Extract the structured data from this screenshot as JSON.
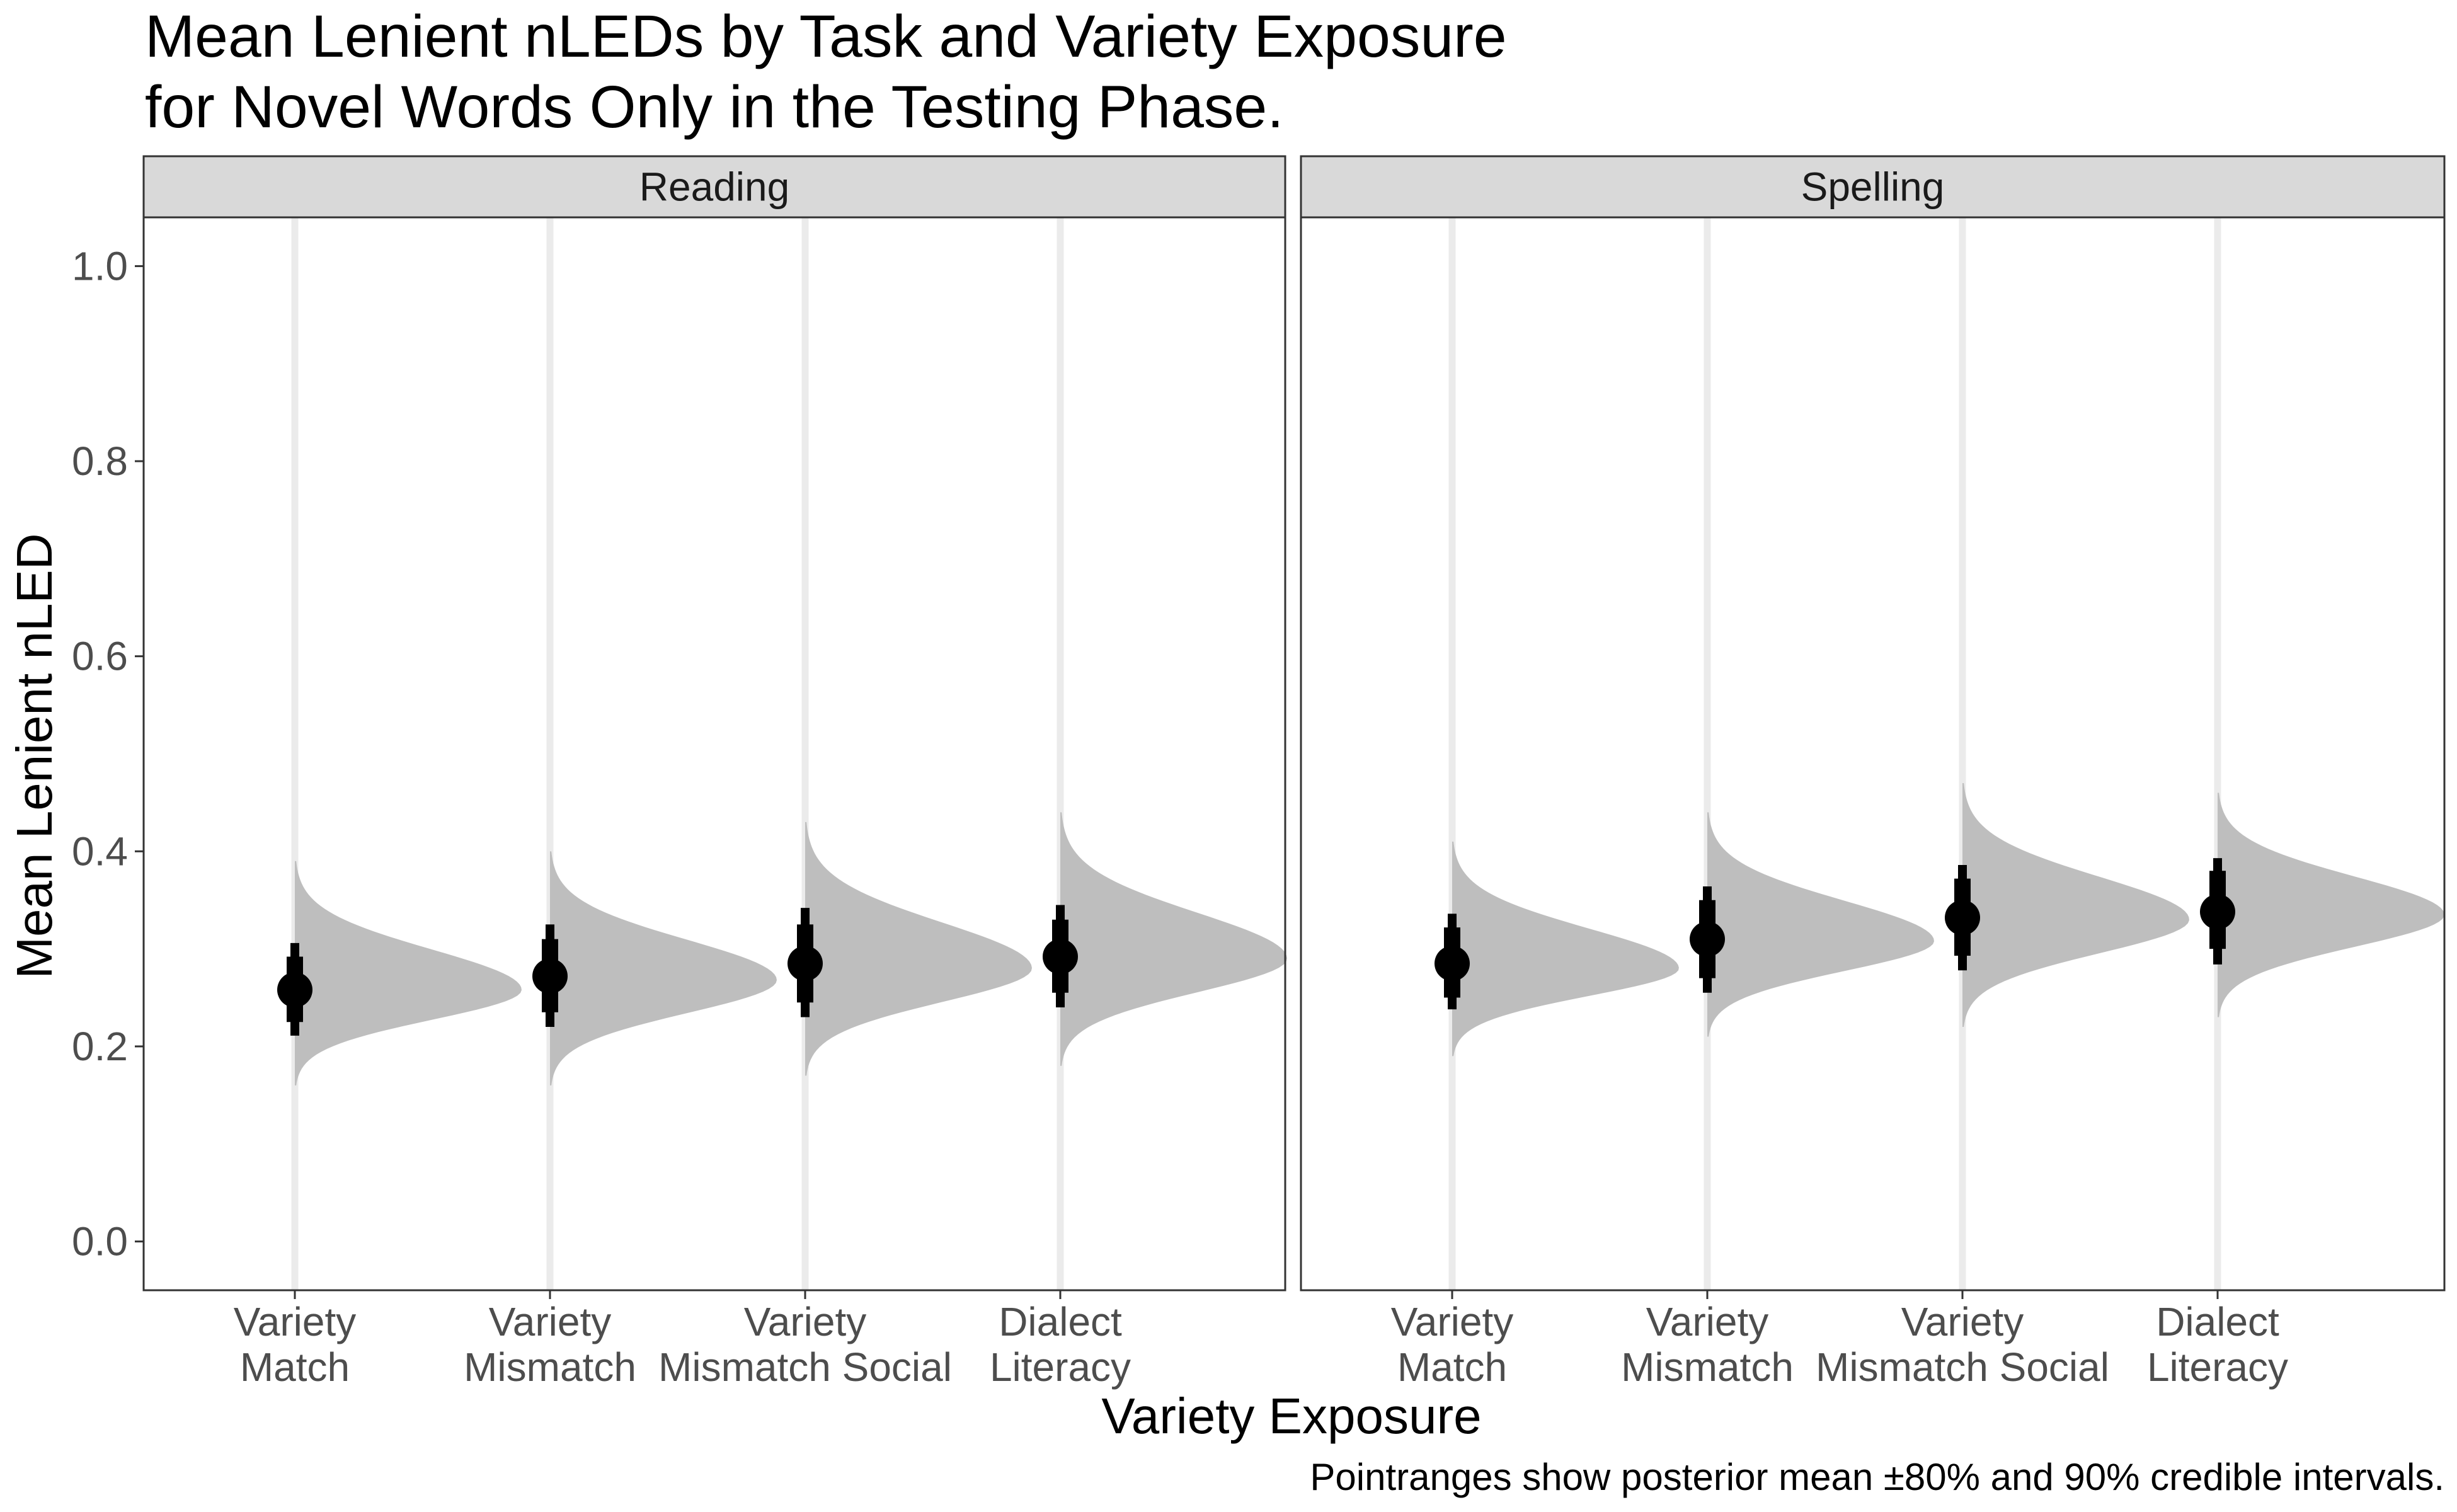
{
  "chart_data": {
    "type": "halfeye-pointinterval",
    "title_lines": [
      "Mean Lenient nLEDs by Task and Variety Exposure",
      "for Novel Words Only in the Testing Phase."
    ],
    "xlabel": "Variety Exposure",
    "ylabel": "Mean Lenient nLED",
    "caption": "Pointranges show posterior mean ±80% and 90% credible intervals.",
    "ylim": [
      -0.05,
      1.05
    ],
    "y_ticks": [
      0.0,
      0.2,
      0.4,
      0.6,
      0.8,
      1.0
    ],
    "y_tick_labels": [
      "0.0",
      "0.2",
      "0.4",
      "0.6",
      "0.8",
      "1.0"
    ],
    "categories": [
      [
        "Variety",
        "Match"
      ],
      [
        "Variety",
        "Mismatch"
      ],
      [
        "Variety",
        "Mismatch Social"
      ],
      [
        "Dialect",
        "Literacy"
      ]
    ],
    "grid": "major x gridlines only",
    "colors": {
      "density": "#bebebe",
      "point": "#000000",
      "gridline": "#ebebeb",
      "strip_fill": "#d9d9d9",
      "panel_border": "#333333"
    },
    "facets": [
      {
        "label": "Reading",
        "points": [
          {
            "mean": 0.258,
            "ci80": [
              0.225,
              0.292
            ],
            "ci90": [
              0.211,
              0.306
            ],
            "density_range": [
              0.16,
              0.39
            ],
            "mode": 0.258
          },
          {
            "mean": 0.272,
            "ci80": [
              0.235,
              0.31
            ],
            "ci90": [
              0.22,
              0.325
            ],
            "density_range": [
              0.16,
              0.4
            ],
            "mode": 0.268
          },
          {
            "mean": 0.285,
            "ci80": [
              0.245,
              0.325
            ],
            "ci90": [
              0.23,
              0.342
            ],
            "density_range": [
              0.17,
              0.43
            ],
            "mode": 0.28
          },
          {
            "mean": 0.292,
            "ci80": [
              0.255,
              0.33
            ],
            "ci90": [
              0.24,
              0.345
            ],
            "density_range": [
              0.18,
              0.44
            ],
            "mode": 0.29
          }
        ]
      },
      {
        "label": "Spelling",
        "points": [
          {
            "mean": 0.285,
            "ci80": [
              0.25,
              0.322
            ],
            "ci90": [
              0.238,
              0.336
            ],
            "density_range": [
              0.19,
              0.41
            ],
            "mode": 0.28
          },
          {
            "mean": 0.31,
            "ci80": [
              0.27,
              0.35
            ],
            "ci90": [
              0.255,
              0.364
            ],
            "density_range": [
              0.21,
              0.44
            ],
            "mode": 0.308
          },
          {
            "mean": 0.332,
            "ci80": [
              0.293,
              0.372
            ],
            "ci90": [
              0.278,
              0.386
            ],
            "density_range": [
              0.22,
              0.47
            ],
            "mode": 0.33
          },
          {
            "mean": 0.338,
            "ci80": [
              0.3,
              0.38
            ],
            "ci90": [
              0.284,
              0.393
            ],
            "density_range": [
              0.23,
              0.46
            ],
            "mode": 0.335
          }
        ]
      }
    ]
  }
}
